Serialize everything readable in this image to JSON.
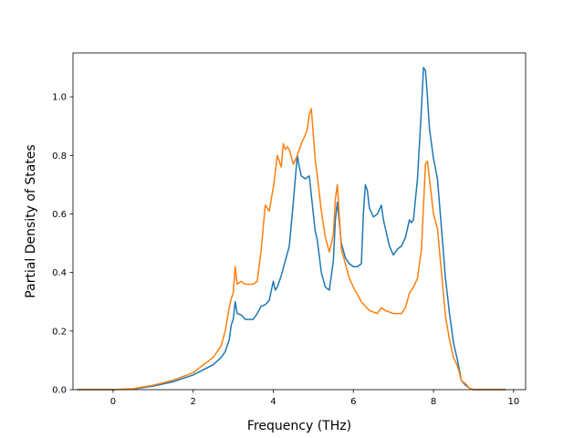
{
  "chart_data": {
    "type": "line",
    "title": "",
    "xlabel": "Frequency (THz)",
    "ylabel": "Partial Density of States",
    "xlim": [
      -1.0,
      10.3
    ],
    "ylim": [
      0.0,
      1.15
    ],
    "xticks": [
      0,
      2,
      4,
      6,
      8,
      10
    ],
    "xtick_labels": [
      "0",
      "2",
      "4",
      "6",
      "8",
      "10"
    ],
    "yticks": [
      0.0,
      0.2,
      0.4,
      0.6,
      0.8,
      1.0
    ],
    "ytick_labels": [
      "0.0",
      "0.2",
      "0.4",
      "0.6",
      "0.8",
      "1.0"
    ],
    "grid": false,
    "series": [
      {
        "color": "#1f77b4",
        "x": [
          -0.9,
          -0.5,
          0,
          0.5,
          1,
          1.5,
          2,
          2.5,
          2.7,
          2.8,
          2.9,
          2.95,
          3.0,
          3.05,
          3.1,
          3.2,
          3.3,
          3.5,
          3.6,
          3.7,
          3.8,
          3.9,
          4.0,
          4.05,
          4.1,
          4.2,
          4.3,
          4.4,
          4.5,
          4.55,
          4.6,
          4.65,
          4.7,
          4.8,
          4.9,
          5.0,
          5.05,
          5.1,
          5.2,
          5.3,
          5.4,
          5.5,
          5.55,
          5.6,
          5.7,
          5.8,
          5.9,
          6.0,
          6.1,
          6.2,
          6.25,
          6.3,
          6.35,
          6.4,
          6.5,
          6.6,
          6.7,
          6.75,
          6.8,
          6.9,
          7.0,
          7.1,
          7.2,
          7.3,
          7.4,
          7.45,
          7.5,
          7.6,
          7.7,
          7.75,
          7.8,
          7.85,
          7.9,
          8.0,
          8.1,
          8.2,
          8.3,
          8.4,
          8.5,
          8.6,
          8.7,
          8.8,
          8.9,
          9.0,
          9.5,
          9.8
        ],
        "y": [
          0.0,
          0.0,
          0.0,
          0.002,
          0.012,
          0.027,
          0.05,
          0.085,
          0.11,
          0.13,
          0.17,
          0.22,
          0.24,
          0.3,
          0.26,
          0.255,
          0.24,
          0.24,
          0.26,
          0.285,
          0.29,
          0.305,
          0.37,
          0.34,
          0.35,
          0.39,
          0.44,
          0.49,
          0.64,
          0.72,
          0.8,
          0.76,
          0.73,
          0.72,
          0.73,
          0.6,
          0.54,
          0.51,
          0.4,
          0.35,
          0.34,
          0.44,
          0.58,
          0.64,
          0.5,
          0.45,
          0.43,
          0.42,
          0.42,
          0.43,
          0.6,
          0.7,
          0.68,
          0.62,
          0.59,
          0.6,
          0.63,
          0.58,
          0.55,
          0.49,
          0.46,
          0.48,
          0.49,
          0.52,
          0.58,
          0.57,
          0.58,
          0.72,
          0.96,
          1.1,
          1.09,
          1.0,
          0.89,
          0.79,
          0.72,
          0.55,
          0.38,
          0.26,
          0.16,
          0.1,
          0.03,
          0.015,
          0.005,
          0.0,
          0.0,
          0.0
        ]
      },
      {
        "color": "#ff7f0e",
        "x": [
          -0.9,
          -0.5,
          0,
          0.5,
          1,
          1.5,
          2,
          2.5,
          2.7,
          2.8,
          2.9,
          2.95,
          3.0,
          3.05,
          3.1,
          3.2,
          3.3,
          3.5,
          3.6,
          3.7,
          3.8,
          3.9,
          4.0,
          4.05,
          4.1,
          4.2,
          4.25,
          4.3,
          4.35,
          4.4,
          4.5,
          4.6,
          4.7,
          4.8,
          4.85,
          4.9,
          4.95,
          5.0,
          5.05,
          5.1,
          5.2,
          5.3,
          5.4,
          5.5,
          5.55,
          5.6,
          5.7,
          5.8,
          5.9,
          6.0,
          6.2,
          6.4,
          6.6,
          6.7,
          6.8,
          7.0,
          7.2,
          7.3,
          7.4,
          7.5,
          7.6,
          7.7,
          7.8,
          7.85,
          7.9,
          8.0,
          8.1,
          8.2,
          8.3,
          8.4,
          8.5,
          8.6,
          8.7,
          8.8,
          8.9,
          9.0,
          9.5,
          9.8
        ],
        "y": [
          0.0,
          0.0,
          0.0,
          0.003,
          0.015,
          0.032,
          0.058,
          0.11,
          0.15,
          0.2,
          0.28,
          0.31,
          0.33,
          0.42,
          0.36,
          0.37,
          0.36,
          0.36,
          0.37,
          0.48,
          0.63,
          0.61,
          0.69,
          0.74,
          0.8,
          0.76,
          0.84,
          0.82,
          0.83,
          0.82,
          0.77,
          0.8,
          0.84,
          0.87,
          0.89,
          0.94,
          0.96,
          0.87,
          0.78,
          0.73,
          0.61,
          0.52,
          0.47,
          0.53,
          0.65,
          0.7,
          0.48,
          0.43,
          0.38,
          0.35,
          0.3,
          0.27,
          0.26,
          0.28,
          0.27,
          0.26,
          0.26,
          0.28,
          0.33,
          0.35,
          0.38,
          0.48,
          0.77,
          0.78,
          0.72,
          0.6,
          0.55,
          0.4,
          0.25,
          0.17,
          0.11,
          0.08,
          0.03,
          0.02,
          0.005,
          0.0,
          0.0,
          0.0
        ]
      }
    ]
  }
}
